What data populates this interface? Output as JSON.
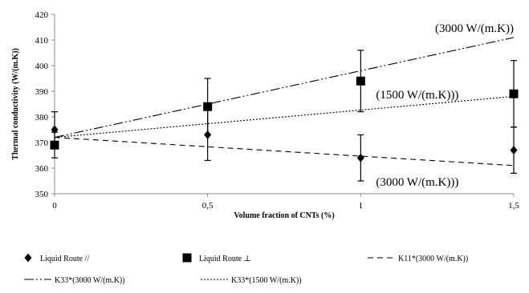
{
  "chart_data": {
    "type": "scatter",
    "xlabel": "Volume fraction of CNTs (%)",
    "ylabel": "Thermal conductivity (W/(m.K))",
    "x_ticks": [
      "0",
      "0,5",
      "1",
      "1,5"
    ],
    "x_tick_values": [
      0,
      0.5,
      1,
      1.5
    ],
    "y_ticks": [
      "350",
      "360",
      "370",
      "380",
      "390",
      "400",
      "410",
      "420"
    ],
    "y_tick_values": [
      350,
      360,
      370,
      380,
      390,
      400,
      410,
      420
    ],
    "xlim": [
      0,
      1.5
    ],
    "ylim": [
      350,
      420
    ],
    "grid": false,
    "legend_position": "bottom",
    "series": [
      {
        "name": "Liquid Route //",
        "marker": "diamond",
        "x": [
          0,
          0.5,
          1,
          1.5
        ],
        "y": [
          375,
          373,
          364,
          367
        ],
        "err": [
          7,
          10,
          9,
          9
        ]
      },
      {
        "name": "Liquid Route ⊥",
        "marker": "square",
        "x": [
          0,
          0.5,
          1,
          1.5
        ],
        "y": [
          369,
          384,
          394,
          389
        ],
        "err": [
          5,
          11,
          12,
          13
        ]
      },
      {
        "name": "K11*(3000 W/(m.K))",
        "line": "dash",
        "x": [
          0,
          1.5
        ],
        "y": [
          372,
          361
        ]
      },
      {
        "name": "K33*(3000 W/(m.K))",
        "line": "dash-dot-dot",
        "x": [
          0,
          1.5
        ],
        "y": [
          372,
          411
        ]
      },
      {
        "name": "K33*(1500 W/(m.K))",
        "line": "dot",
        "x": [
          0,
          1.5
        ],
        "y": [
          372,
          388
        ]
      }
    ],
    "annotations": [
      {
        "text": "(3000 W/(m.K))",
        "x": 1.5,
        "y": 415
      },
      {
        "text": "(1500 W/(m.K)))",
        "x": 1.32,
        "y": 389
      },
      {
        "text": "(3000 W/(m.K)))",
        "x": 1.32,
        "y": 355
      }
    ]
  }
}
